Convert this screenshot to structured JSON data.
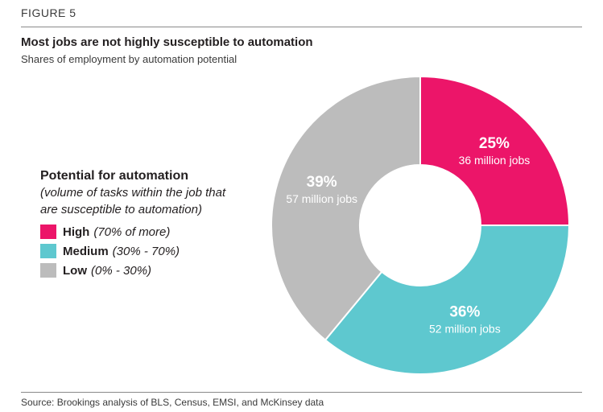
{
  "figure_label": "FIGURE 5",
  "title": "Most jobs are not highly susceptible to automation",
  "subtitle": "Shares of employment by automation potential",
  "source": "Source: Brookings analysis of BLS, Census, EMSI, and McKinsey data",
  "legend": {
    "title": "Potential for automation",
    "note_line1": "(volume of tasks within the job that",
    "note_line2": "are susceptible to automation)"
  },
  "chart_data": {
    "type": "pie",
    "variant": "donut",
    "title": "Most jobs are not highly susceptible to automation",
    "subtitle": "Shares of employment by automation potential",
    "legend_title": "Potential for automation",
    "legend_position": "left",
    "start": "top, clockwise",
    "slices": [
      {
        "name": "High",
        "range": "(70% of more)",
        "value": 25,
        "label": "25%",
        "jobs": "36 million jobs",
        "color": "#ec1569"
      },
      {
        "name": "Medium",
        "range": "(30% - 70%)",
        "value": 36,
        "label": "36%",
        "jobs": "52 million jobs",
        "color": "#5ec8cf"
      },
      {
        "name": "Low",
        "range": "(0% - 30%)",
        "value": 39,
        "label": "39%",
        "jobs": "57 million jobs",
        "color": "#bcbcbc"
      }
    ]
  }
}
